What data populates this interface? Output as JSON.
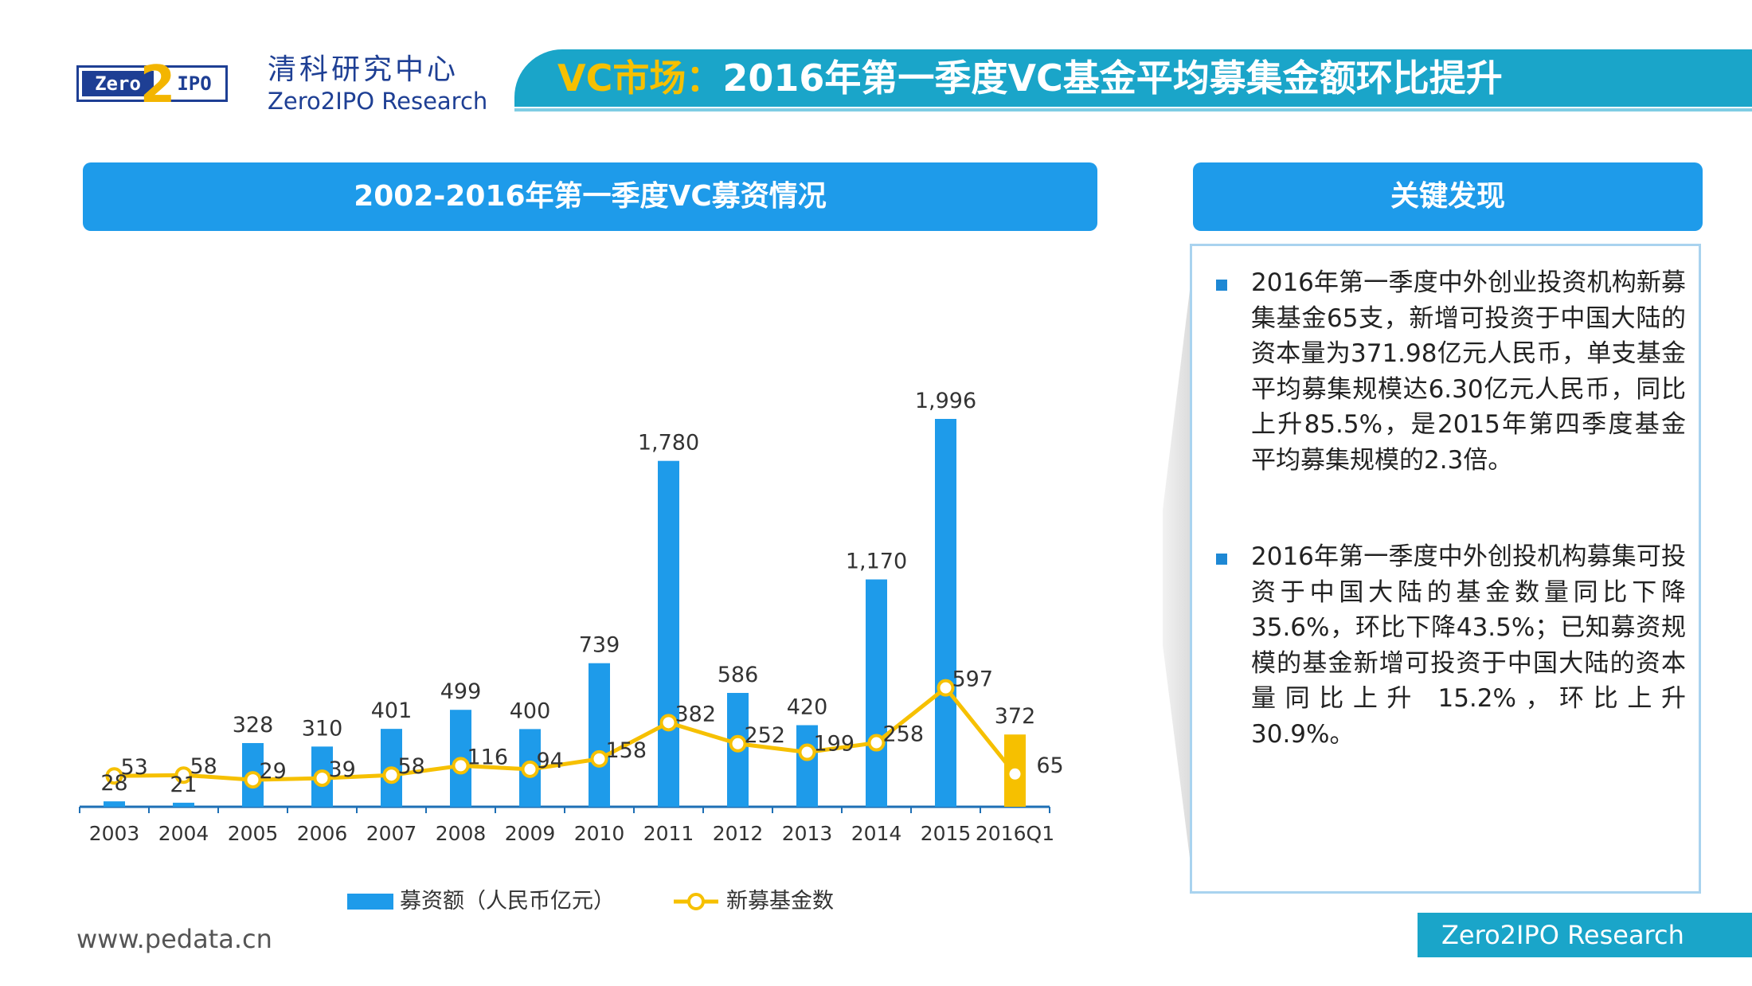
{
  "header": {
    "logo": {
      "left_text": "Zero",
      "two_glyph": "2",
      "right_text": "IPO"
    },
    "org_name_cn": "清科研究中心",
    "org_name_en": "Zero2IPO Research",
    "title_accent": "VC市场：",
    "title_main": "2016年第一季度VC基金平均募集金额环比提升"
  },
  "chart_header": "2002-2016年第一季度VC募资情况",
  "findings": {
    "header": "关键发现",
    "items": [
      "2016年第一季度中外创业投资机构新募集基金65支，新增可投资于中国大陆的资本量为371.98亿元人民币，单支基金平均募集规模达6.30亿元人民币，同比上升85.5%，是2015年第四季度基金平均募集规模的2.3倍。",
      "2016年第一季度中外创投机构募集可投资于中国大陆的基金数量同比下降35.6%，环比下降43.5%；已知募资规模的基金新增可投资于中国大陆的资本量同比上升 15.2%，环比上升30.9%。"
    ]
  },
  "chart_data": {
    "type": "bar",
    "title": "2002-2016年第一季度VC募资情况",
    "categories": [
      "2003",
      "2004",
      "2005",
      "2006",
      "2007",
      "2008",
      "2009",
      "2010",
      "2011",
      "2012",
      "2013",
      "2014",
      "2015",
      "2016Q1"
    ],
    "series": [
      {
        "name": "募资额（人民币亿元）",
        "type": "bar",
        "values": [
          28,
          21,
          328,
          310,
          401,
          499,
          400,
          739,
          1780,
          586,
          420,
          1170,
          1996,
          372
        ]
      },
      {
        "name": "新募基金数",
        "type": "line",
        "values": [
          53,
          58,
          29,
          39,
          58,
          116,
          94,
          158,
          382,
          252,
          199,
          258,
          597,
          65
        ]
      }
    ],
    "value_labels": {
      "bar": [
        "28",
        "21",
        "328",
        "310",
        "401",
        "499",
        "400",
        "739",
        "1,780",
        "586",
        "420",
        "1,170",
        "1,996",
        "372"
      ],
      "line": [
        "53",
        "58",
        "29",
        "39",
        "58",
        "116",
        "94",
        "158",
        "382",
        "252",
        "199",
        "258",
        "597",
        "65"
      ]
    },
    "ylim": [
      0,
      2100
    ],
    "highlight_last": true,
    "legend_position": "bottom",
    "colors": {
      "bar": "#1e9bea",
      "bar_last": "#f6c000",
      "line": "#f6c000",
      "axis": "#1e6fb5"
    }
  },
  "footer": {
    "url": "www.pedata.cn",
    "brand": "Zero2IPO Research"
  }
}
